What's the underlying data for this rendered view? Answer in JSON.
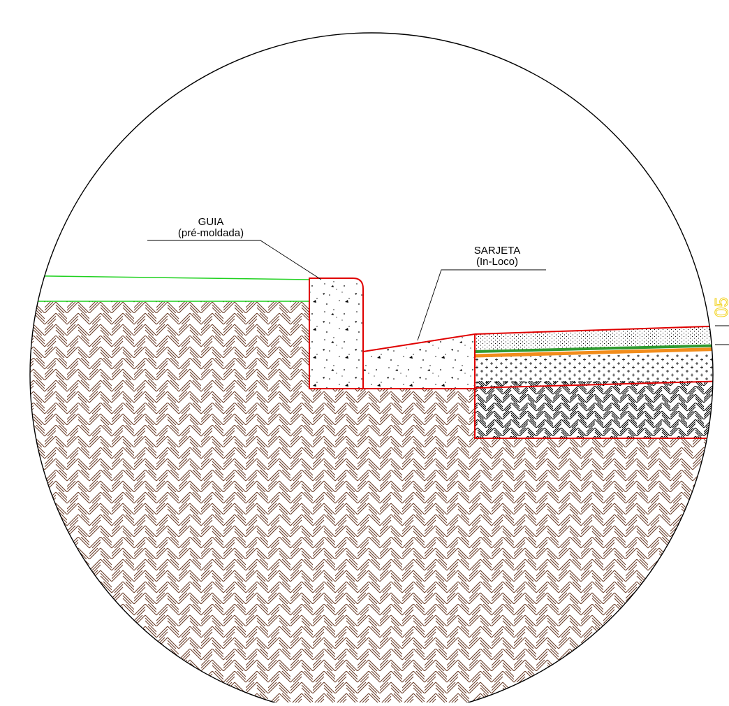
{
  "labels": {
    "guia_title": "GUIA",
    "guia_subtitle": "(pré-moldada)",
    "sarjeta_title": "SARJETA",
    "sarjeta_subtitle": "(In-Loco)",
    "edge_mark": "05"
  },
  "colors": {
    "outline": "#000000",
    "soil_hatch": "#6b3f2a",
    "subgrade_hatch": "#000000",
    "element_outline": "#e00000",
    "grass_line": "#1fd11f",
    "asphalt_layer": "#2e9a2e",
    "bond_layer": "#f28c1a",
    "dimension_mark": "#f2d21a",
    "concrete_fill": "#ffffff"
  }
}
